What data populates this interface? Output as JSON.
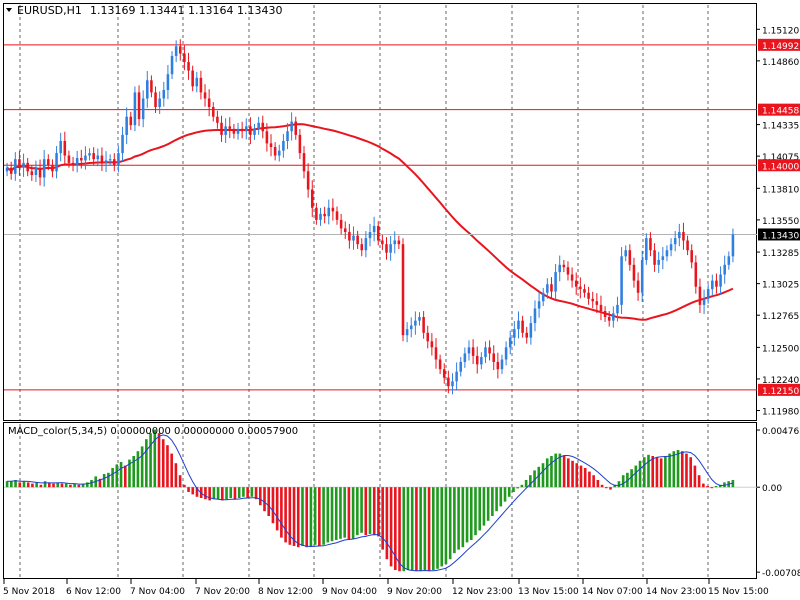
{
  "chart_data": [
    {
      "type": "candlestick",
      "title": "EURUSD,H1",
      "ohlc_label": "1.13169 1.13441 1.13164 1.13430",
      "symbol": "EURUSD",
      "timeframe": "H1",
      "last_ohlc": {
        "open": 1.13169,
        "high": 1.13441,
        "low": 1.13164,
        "close": 1.1343
      },
      "ylim": [
        1.1191,
        1.1532
      ],
      "y_ticks": [
        "1.15120",
        "1.14860",
        "1.14335",
        "1.14075",
        "1.13810",
        "1.13550",
        "1.13285",
        "1.13025",
        "1.12765",
        "1.12500",
        "1.12240",
        "1.11980"
      ],
      "x_ticks": [
        "5 Nov 2018",
        "6 Nov 12:00",
        "7 Nov 04:00",
        "7 Nov 20:00",
        "8 Nov 12:00",
        "9 Nov 04:00",
        "9 Nov 20:00",
        "12 Nov 23:00",
        "13 Nov 15:00",
        "14 Nov 07:00",
        "14 Nov 23:00",
        "15 Nov 15:00"
      ],
      "horizontal_lines": [
        {
          "value": 1.14992,
          "label": "1.14992",
          "color": "#e8141e"
        },
        {
          "value": 1.14458,
          "label": "1.14458",
          "color": "#e8141e"
        },
        {
          "value": 1.14,
          "label": "1.14000",
          "color": "#e8141e"
        },
        {
          "value": 1.1215,
          "label": "1.12150",
          "color": "#e8141e"
        }
      ],
      "current_price": {
        "value": 1.1343,
        "label": "1.13430",
        "line_color": "#b4b4b4"
      },
      "moving_average_color": "#e8141e",
      "bull_color": "#2f7fe0",
      "bear_color": "#e8141e",
      "grid": true,
      "closes": [
        1.1398,
        1.1393,
        1.1405,
        1.1398,
        1.1402,
        1.1395,
        1.1392,
        1.1398,
        1.139,
        1.1405,
        1.14,
        1.1395,
        1.141,
        1.142,
        1.1408,
        1.1402,
        1.14,
        1.1406,
        1.1404,
        1.1408,
        1.141,
        1.1405,
        1.1408,
        1.1402,
        1.1404,
        1.1405,
        1.14,
        1.141,
        1.1425,
        1.144,
        1.1433,
        1.146,
        1.1438,
        1.1455,
        1.147,
        1.146,
        1.1448,
        1.1455,
        1.1462,
        1.1475,
        1.149,
        1.1498,
        1.1492,
        1.1485,
        1.1478,
        1.1465,
        1.1472,
        1.146,
        1.1455,
        1.1448,
        1.144,
        1.1435,
        1.1425,
        1.1432,
        1.143,
        1.1426,
        1.143,
        1.1428,
        1.1432,
        1.1425,
        1.143,
        1.1435,
        1.1428,
        1.1418,
        1.1415,
        1.1408,
        1.1412,
        1.142,
        1.1428,
        1.1436,
        1.1425,
        1.141,
        1.1395,
        1.138,
        1.1365,
        1.1355,
        1.136,
        1.1358,
        1.1365,
        1.1362,
        1.1355,
        1.1348,
        1.1345,
        1.1338,
        1.1342,
        1.1335,
        1.133,
        1.134,
        1.1345,
        1.135,
        1.1338,
        1.1335,
        1.1328,
        1.1335,
        1.1338,
        1.1335,
        1.126,
        1.1265,
        1.1268,
        1.1272,
        1.1275,
        1.1262,
        1.1255,
        1.125,
        1.124,
        1.1232,
        1.1225,
        1.1218,
        1.1222,
        1.123,
        1.1238,
        1.1245,
        1.125,
        1.1243,
        1.1236,
        1.1242,
        1.125,
        1.1245,
        1.1238,
        1.1232,
        1.124,
        1.125,
        1.1258,
        1.1265,
        1.1272,
        1.1262,
        1.1258,
        1.127,
        1.1282,
        1.1288,
        1.1295,
        1.1302,
        1.1296,
        1.1312,
        1.1318,
        1.1316,
        1.131,
        1.1305,
        1.13,
        1.1298,
        1.1295,
        1.129,
        1.1288,
        1.1285,
        1.128,
        1.1275,
        1.1272,
        1.1278,
        1.1285,
        1.1325,
        1.133,
        1.1318,
        1.1305,
        1.1295,
        1.1322,
        1.134,
        1.133,
        1.1318,
        1.1322,
        1.1325,
        1.133,
        1.1335,
        1.134,
        1.1345,
        1.1338,
        1.133,
        1.132,
        1.13,
        1.1285,
        1.129,
        1.1298,
        1.1305,
        1.13,
        1.131,
        1.1318,
        1.1325,
        1.1343
      ]
    },
    {
      "type": "histogram",
      "title": "MACD_color(5,34,5) 0.00000000 0.00000000 0.00057900",
      "ylim": [
        -0.0074,
        0.0051
      ],
      "y_ticks": [
        "0.004765",
        "0.00",
        "-0.007080"
      ],
      "zero_line": true,
      "positive_color": "#1f9a1f",
      "negative_color": "#e8141e",
      "signal_color": "#1f3fd0",
      "values": [
        0.0005,
        0.0005,
        0.0006,
        0.0004,
        0.0005,
        0.0004,
        0.0003,
        0.0004,
        0.0002,
        0.0005,
        0.0004,
        0.0003,
        0.0004,
        0.0003,
        0.0003,
        0.0002,
        0.0003,
        0.0002,
        0.0003,
        0.0004,
        0.0006,
        0.0009,
        0.0007,
        0.0011,
        0.0012,
        0.0016,
        0.0019,
        0.0021,
        0.0018,
        0.0023,
        0.0026,
        0.003,
        0.0034,
        0.004,
        0.0045,
        0.0048,
        0.0045,
        0.004,
        0.0035,
        0.0028,
        0.002,
        0.001,
        0.0002,
        -0.0004,
        -0.0006,
        -0.0008,
        -0.0009,
        -0.001,
        -0.0011,
        -0.001,
        -0.001,
        -0.0011,
        -0.001,
        -0.0009,
        -0.001,
        -0.0009,
        -0.0008,
        -0.0009,
        -0.0008,
        -0.001,
        -0.0015,
        -0.002,
        -0.0024,
        -0.003,
        -0.0036,
        -0.0042,
        -0.0046,
        -0.0048,
        -0.0049,
        -0.005,
        -0.0049,
        -0.005,
        -0.0049,
        -0.0048,
        -0.0049,
        -0.0048,
        -0.0046,
        -0.0045,
        -0.0044,
        -0.0043,
        -0.0042,
        -0.0044,
        -0.0043,
        -0.004,
        -0.0038,
        -0.004,
        -0.0039,
        -0.004,
        -0.0041,
        -0.0052,
        -0.006,
        -0.0066,
        -0.0069,
        -0.007,
        -0.007,
        -0.0069,
        -0.0069,
        -0.007,
        -0.007,
        -0.0069,
        -0.007,
        -0.0069,
        -0.0068,
        -0.0066,
        -0.0064,
        -0.006,
        -0.0055,
        -0.0052,
        -0.005,
        -0.0046,
        -0.0044,
        -0.004,
        -0.0036,
        -0.0032,
        -0.0028,
        -0.0024,
        -0.002,
        -0.0016,
        -0.0012,
        -0.0008,
        -0.0004,
        -0.0001,
        0.0002,
        0.0006,
        0.001,
        0.0014,
        0.0017,
        0.002,
        0.0024,
        0.0026,
        0.0028,
        0.0028,
        0.0026,
        0.0024,
        0.0022,
        0.002,
        0.0018,
        0.0016,
        0.0013,
        0.001,
        0.0006,
        0.0002,
        0.0,
        -0.0002,
        0.0002,
        0.0005,
        0.001,
        0.0012,
        0.0015,
        0.0018,
        0.0022,
        0.0025,
        0.0027,
        0.0026,
        0.0025,
        0.0024,
        0.0026,
        0.0028,
        0.003,
        0.0031,
        0.003,
        0.0028,
        0.0025,
        0.0018,
        0.001,
        0.0003,
        0.0001,
        0.0,
        0.0001,
        0.0002,
        0.0004,
        0.0005,
        0.0006
      ]
    }
  ]
}
